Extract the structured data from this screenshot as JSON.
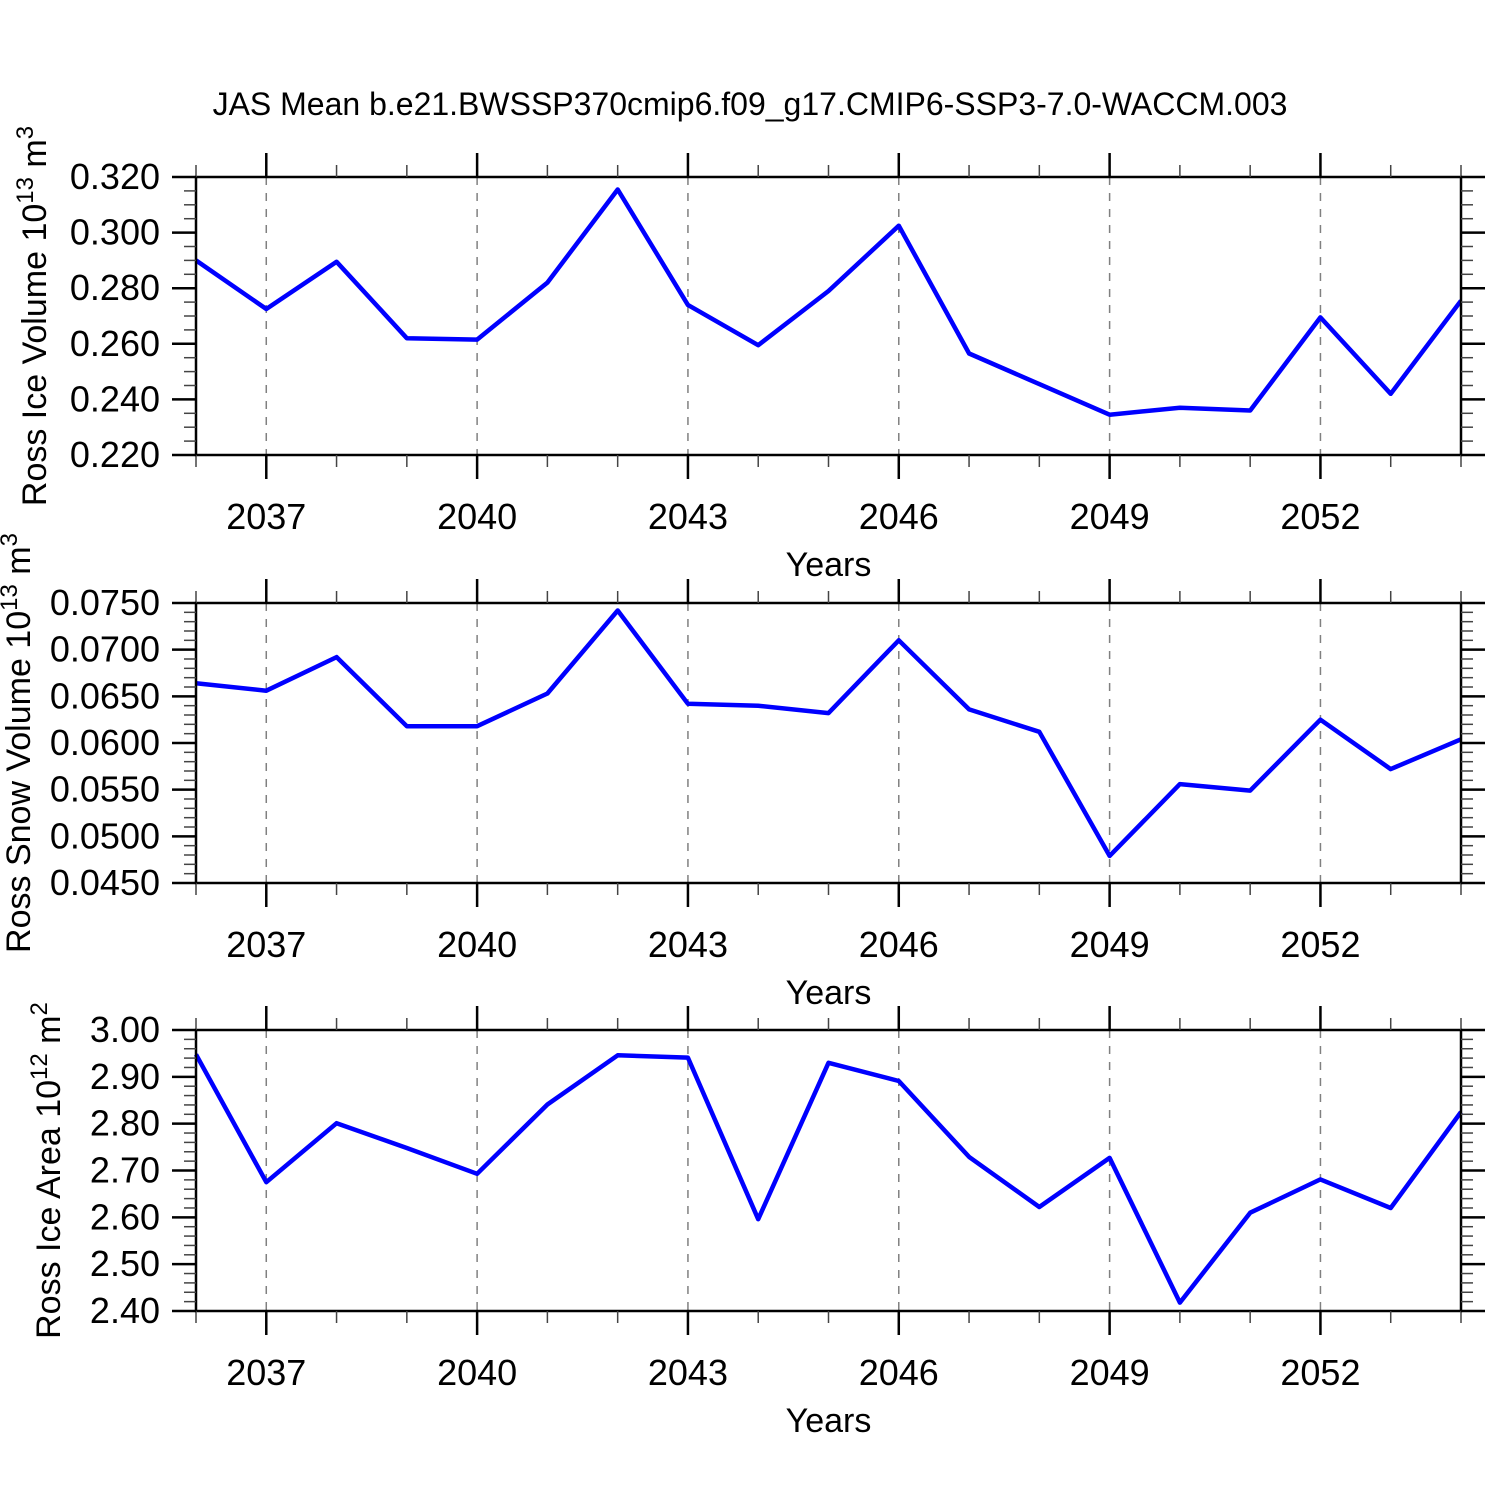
{
  "title": "JAS Mean b.e21.BWSSP370cmip6.f09_g17.CMIP6-SSP3-7.0-WACCM.003",
  "line_color": "#0000ff",
  "grid_color": "#808080",
  "axis_color": "#000000",
  "x_axis": {
    "label": "Years",
    "range": [
      2036,
      2054
    ],
    "major_ticks": [
      2037,
      2040,
      2043,
      2046,
      2049,
      2052
    ],
    "major_tick_labels": [
      "2037",
      "2040",
      "2043",
      "2046",
      "2049",
      "2052"
    ],
    "minor_step": 1,
    "gridlines": "dashed"
  },
  "chart_data": [
    {
      "type": "line",
      "name": "ross-ice-volume",
      "ylabel_text": "Ross Ice Volume 10^13 m^3",
      "ylabel_parts": [
        {
          "t": "Ross Ice Volume 10"
        },
        {
          "t": "13",
          "sup": true
        },
        {
          "t": " m"
        },
        {
          "t": "3",
          "sup": true
        }
      ],
      "xlabel": "Years",
      "ylim": [
        0.22,
        0.32
      ],
      "ytick_labels": [
        "0.220",
        "0.240",
        "0.260",
        "0.280",
        "0.300",
        "0.320"
      ],
      "yminor_step": 0.005,
      "x": [
        2036,
        2037,
        2038,
        2039,
        2040,
        2041,
        2042,
        2043,
        2044,
        2045,
        2046,
        2047,
        2048,
        2049,
        2050,
        2051,
        2052,
        2053,
        2054
      ],
      "values": [
        0.29,
        0.2725,
        0.2895,
        0.262,
        0.2615,
        0.282,
        0.3155,
        0.274,
        0.2595,
        0.279,
        0.3025,
        0.2565,
        0.2455,
        0.2345,
        0.237,
        0.236,
        0.2695,
        0.242,
        0.2755
      ]
    },
    {
      "type": "line",
      "name": "ross-snow-volume",
      "ylabel_text": "Ross Snow Volume 10^13 m^3",
      "ylabel_parts": [
        {
          "t": "Ross Snow Volume 10"
        },
        {
          "t": "13",
          "sup": true
        },
        {
          "t": " m"
        },
        {
          "t": "3",
          "sup": true
        }
      ],
      "xlabel": "Years",
      "ylim": [
        0.045,
        0.075
      ],
      "ytick_labels": [
        "0.0450",
        "0.0500",
        "0.0550",
        "0.0600",
        "0.0650",
        "0.0700",
        "0.0750"
      ],
      "yminor_step": 0.001,
      "x": [
        2036,
        2037,
        2038,
        2039,
        2040,
        2041,
        2042,
        2043,
        2044,
        2045,
        2046,
        2047,
        2048,
        2049,
        2050,
        2051,
        2052,
        2053,
        2054
      ],
      "values": [
        0.0664,
        0.0656,
        0.0692,
        0.0618,
        0.0618,
        0.0653,
        0.0742,
        0.0642,
        0.064,
        0.0632,
        0.071,
        0.0636,
        0.0612,
        0.0479,
        0.0556,
        0.0549,
        0.0625,
        0.0572,
        0.0604
      ]
    },
    {
      "type": "line",
      "name": "ross-ice-area",
      "ylabel_text": "Ross Ice Area 10^12 m^2",
      "ylabel_parts": [
        {
          "t": "Ross Ice Area 10"
        },
        {
          "t": "12",
          "sup": true
        },
        {
          "t": " m"
        },
        {
          "t": "2",
          "sup": true
        }
      ],
      "xlabel": "Years",
      "ylim": [
        2.4,
        3.0
      ],
      "ytick_labels": [
        "2.40",
        "2.50",
        "2.60",
        "2.70",
        "2.80",
        "2.90",
        "3.00"
      ],
      "yminor_step": 0.02,
      "x": [
        2036,
        2037,
        2038,
        2039,
        2040,
        2041,
        2042,
        2043,
        2044,
        2045,
        2046,
        2047,
        2048,
        2049,
        2050,
        2051,
        2052,
        2053,
        2054
      ],
      "values": [
        2.948,
        2.675,
        2.801,
        2.748,
        2.693,
        2.841,
        2.946,
        2.941,
        2.596,
        2.93,
        2.891,
        2.729,
        2.622,
        2.727,
        2.418,
        2.61,
        2.681,
        2.62,
        2.825
      ]
    }
  ]
}
